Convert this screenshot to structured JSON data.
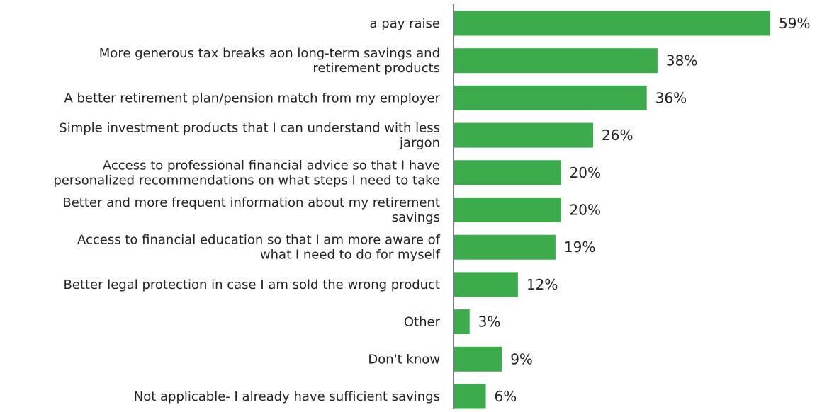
{
  "chart_data": {
    "type": "bar",
    "orientation": "horizontal",
    "title": "",
    "xlabel": "",
    "ylabel": "",
    "categories": [
      [
        "a pay raise"
      ],
      [
        "More generous tax breaks aon long-term savings and",
        "retirement products"
      ],
      [
        "A better retirement plan/pension match from my employer"
      ],
      [
        "Simple investment products that I can understand with less",
        "jargon"
      ],
      [
        "Access to professional financial advice so that I have",
        "personalized recommendations on what steps I need to take"
      ],
      [
        "Better and more frequent information about my retirement",
        "savings"
      ],
      [
        "Access to financial education so that I am more aware of",
        "what I need to do for myself"
      ],
      [
        "Better legal protection in case I am sold the wrong product"
      ],
      [
        "Other"
      ],
      [
        "Don't know"
      ],
      [
        "Not applicable- I already have sufficient savings"
      ]
    ],
    "values": [
      59,
      38,
      36,
      26,
      20,
      20,
      19,
      12,
      3,
      9,
      6
    ],
    "value_labels": [
      "59%",
      "38%",
      "36%",
      "26%",
      "20%",
      "20%",
      "19%",
      "12%",
      "3%",
      "9%",
      "6%"
    ],
    "xlim": [
      0,
      59
    ],
    "grid": false,
    "legend": "none",
    "colors": {
      "bar": "#3bab4c",
      "axis": "#7a7a8c",
      "text": "#222222"
    }
  }
}
